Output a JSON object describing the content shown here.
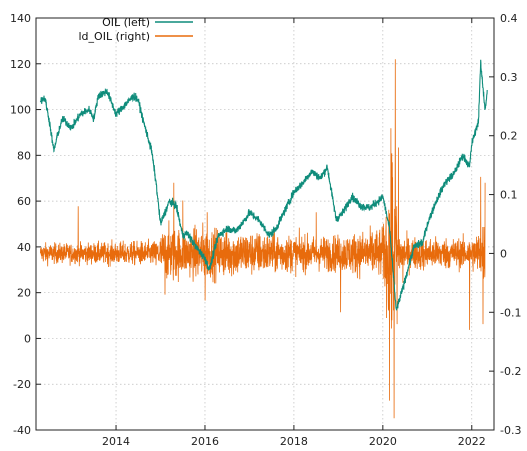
{
  "chart_data": {
    "type": "line",
    "title": "",
    "xlabel": "",
    "ylabel_left": "",
    "ylabel_right": "",
    "x_range": [
      2012.2,
      2022.5
    ],
    "y_left_range": [
      -40,
      140
    ],
    "y_right_range": [
      -0.3,
      0.4
    ],
    "x_ticks": [
      2014,
      2016,
      2018,
      2020,
      2022
    ],
    "y_left_ticks": [
      -40,
      -20,
      0,
      20,
      40,
      60,
      80,
      100,
      120,
      140
    ],
    "y_right_ticks": [
      -0.3,
      -0.2,
      -0.1,
      0,
      0.1,
      0.2,
      0.3,
      0.4
    ],
    "grid": true,
    "legend_position": "top-left",
    "series": [
      {
        "name": "OIL  (left)",
        "axis": "left",
        "color": "#0f8c7b",
        "x": [
          2012.3,
          2012.4,
          2012.5,
          2012.6,
          2012.7,
          2012.8,
          2013.0,
          2013.2,
          2013.4,
          2013.5,
          2013.6,
          2013.8,
          2014.0,
          2014.2,
          2014.4,
          2014.5,
          2014.6,
          2014.8,
          2014.9,
          2015.0,
          2015.1,
          2015.2,
          2015.35,
          2015.5,
          2015.6,
          2015.8,
          2016.0,
          2016.1,
          2016.3,
          2016.5,
          2016.7,
          2016.9,
          2017.0,
          2017.2,
          2017.45,
          2017.6,
          2017.8,
          2018.0,
          2018.2,
          2018.4,
          2018.6,
          2018.75,
          2018.95,
          2019.1,
          2019.3,
          2019.5,
          2019.7,
          2019.9,
          2020.0,
          2020.15,
          2020.25,
          2020.3,
          2020.45,
          2020.7,
          2020.9,
          2021.0,
          2021.2,
          2021.4,
          2021.6,
          2021.8,
          2021.95,
          2022.0,
          2022.15,
          2022.2,
          2022.3,
          2022.35
        ],
        "y": [
          104,
          105,
          95,
          82,
          90,
          96,
          92,
          98,
          100,
          96,
          106,
          108,
          98,
          102,
          106,
          104,
          96,
          82,
          68,
          50,
          55,
          60,
          58,
          45,
          46,
          40,
          35,
          30,
          45,
          48,
          47,
          52,
          55,
          52,
          45,
          48,
          56,
          64,
          68,
          73,
          70,
          75,
          52,
          55,
          62,
          58,
          57,
          60,
          62,
          48,
          25,
          12,
          22,
          40,
          42,
          50,
          60,
          68,
          72,
          80,
          75,
          85,
          95,
          120,
          100,
          108
        ]
      },
      {
        "name": "ld_OIL  (right)",
        "axis": "right",
        "color": "#e86b0c",
        "x": [
          2012.3,
          2013.15,
          2014.9,
          2015.1,
          2015.3,
          2015.5,
          2016.0,
          2016.05,
          2018.5,
          2019.05,
          2020.0,
          2020.15,
          2020.2,
          2020.25,
          2020.28,
          2020.32,
          2020.35,
          2020.45,
          2021.95,
          2022.2,
          2022.25,
          2022.3
        ],
        "y": [
          0.0,
          0.08,
          -0.02,
          -0.07,
          0.12,
          0.09,
          -0.08,
          0.07,
          0.07,
          -0.1,
          0.0,
          -0.25,
          0.17,
          -0.28,
          0.33,
          -0.12,
          0.18,
          -0.05,
          -0.13,
          0.13,
          -0.12,
          0.12
        ],
        "note_volatility": [
          0.012,
          0.012,
          0.015,
          0.03,
          0.035,
          0.025,
          0.035,
          0.03,
          0.02,
          0.022,
          0.03,
          0.09,
          0.12,
          0.12,
          0.08,
          0.045,
          0.03,
          0.02,
          0.018,
          0.028,
          0.04,
          0.035
        ]
      }
    ]
  }
}
